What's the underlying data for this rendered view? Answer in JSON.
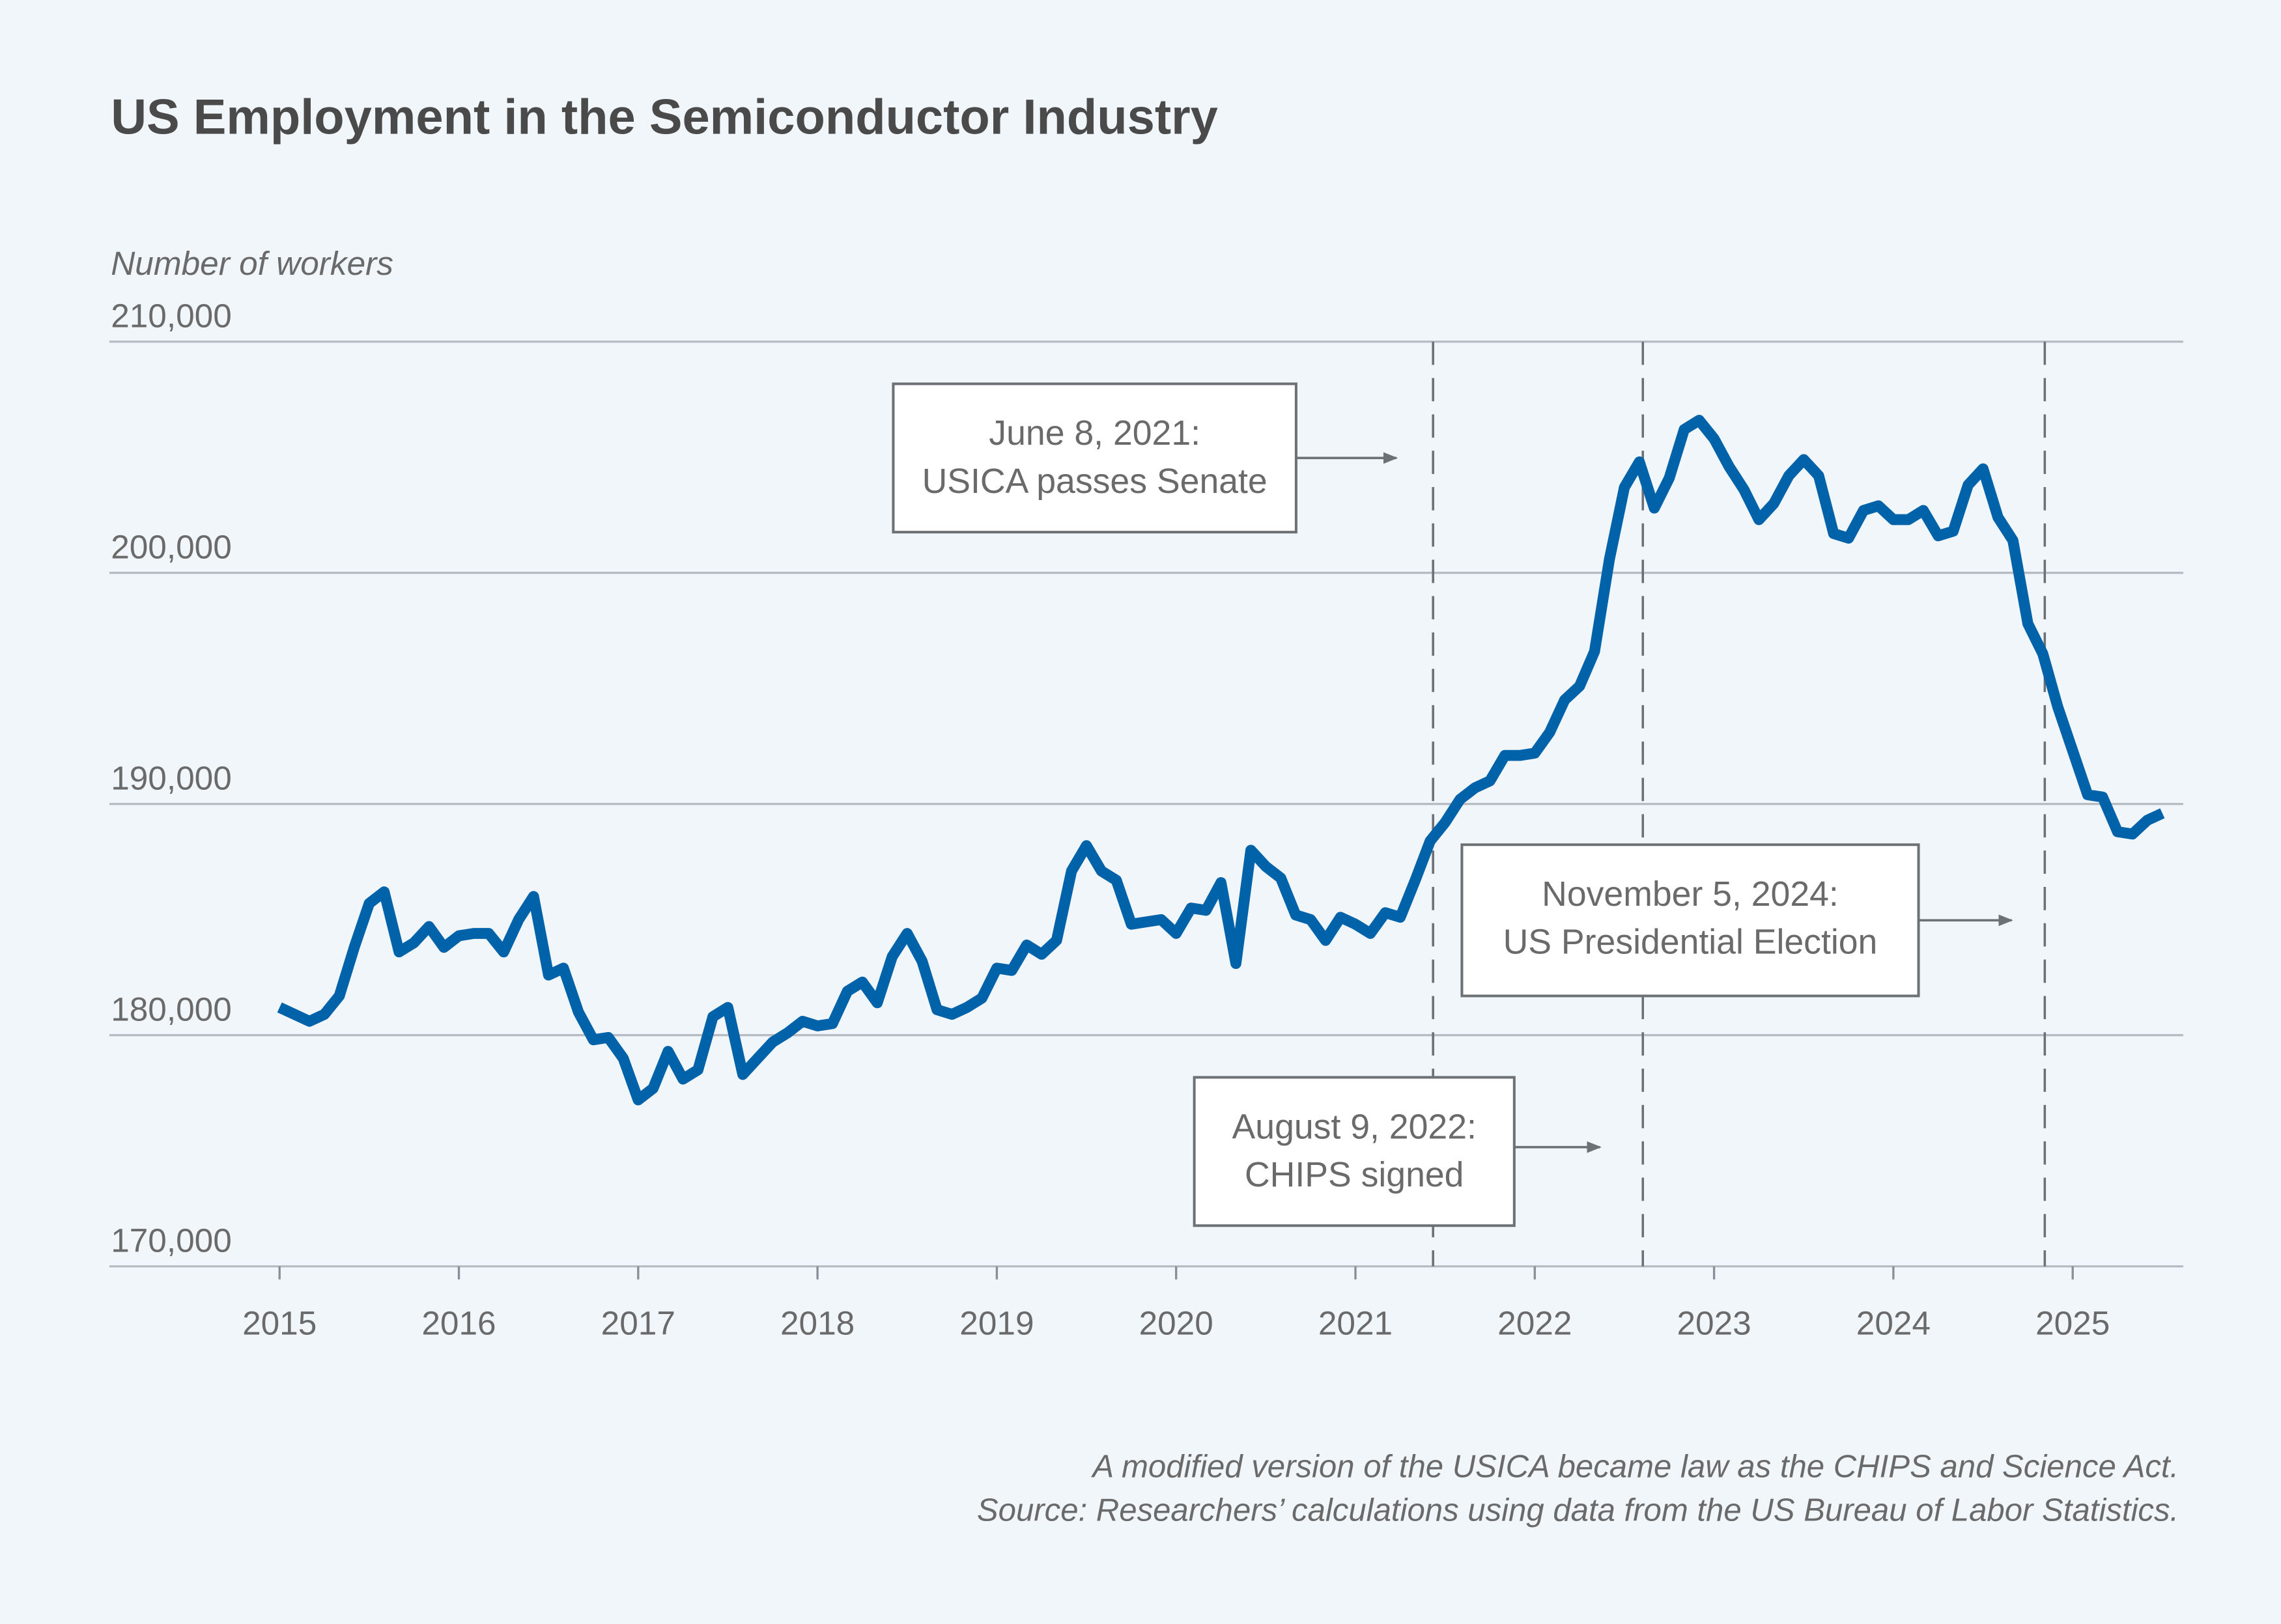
{
  "chart_data": {
    "type": "line",
    "title": "US Employment in the Semiconductor Industry",
    "ylabel": "Number of workers",
    "xlabel": "",
    "ylim": [
      170000,
      210000
    ],
    "y_ticks": [
      "170,000",
      "180,000",
      "190,000",
      "200,000",
      "210,000"
    ],
    "y_tick_values": [
      170000,
      180000,
      190000,
      200000,
      210000
    ],
    "x_ticks": [
      "2015",
      "2016",
      "2017",
      "2018",
      "2019",
      "2020",
      "2021",
      "2022",
      "2023",
      "2024",
      "2025"
    ],
    "x_start": "2015-01",
    "x_end": "2025-07",
    "frequency": "monthly",
    "grid": "horizontal",
    "line_color": "#0062a8",
    "series": [
      {
        "values": [
          181200,
          180900,
          180600,
          180900,
          181700,
          183800,
          185700,
          186200,
          183600,
          184000,
          184700,
          183800,
          184300,
          184400,
          184400,
          183600,
          185000,
          186000,
          182600,
          182900,
          181000,
          179800,
          179900,
          179000,
          177200,
          177700,
          179300,
          178100,
          178500,
          180800,
          181200,
          178300,
          179000,
          179700,
          180100,
          180600,
          180400,
          180500,
          181900,
          182300,
          181400,
          183400,
          184400,
          183200,
          181100,
          180900,
          181200,
          181600,
          182900,
          182800,
          183900,
          183500,
          184100,
          187100,
          188200,
          187100,
          186700,
          184800,
          184900,
          185000,
          184400,
          185500,
          185400,
          186600,
          183100,
          188000,
          187300,
          186800,
          185200,
          185000,
          184100,
          185100,
          184800,
          184400,
          185300,
          185100,
          186700,
          188400,
          189200,
          190200,
          190700,
          191000,
          192100,
          192100,
          192200,
          193100,
          194500,
          195100,
          196600,
          200600,
          203700,
          204800,
          202800,
          204100,
          206200,
          206600,
          205800,
          204600,
          203600,
          202300,
          203000,
          204200,
          204900,
          204200,
          201700,
          201500,
          202700,
          202900,
          202300,
          202300,
          202700,
          201600,
          201800,
          203800,
          204500,
          202400,
          201400,
          197800,
          196500,
          194200,
          192300,
          190400,
          190300,
          188800,
          188700,
          189300,
          189600
        ]
      }
    ],
    "events": [
      {
        "date": "2021-06-08",
        "label_lines": [
          "June 8, 2021:",
          "USICA passes Senate"
        ]
      },
      {
        "date": "2022-08-09",
        "label_lines": [
          "August 9, 2022:",
          "CHIPS signed"
        ]
      },
      {
        "date": "2024-11-05",
        "label_lines": [
          "November 5, 2024:",
          "US Presidential Election"
        ]
      }
    ],
    "notes": [
      "A modified version of the USICA became law as the CHIPS and Science Act.",
      "Source: Researchers’ calculations using data from the US Bureau of Labor Statistics."
    ]
  }
}
